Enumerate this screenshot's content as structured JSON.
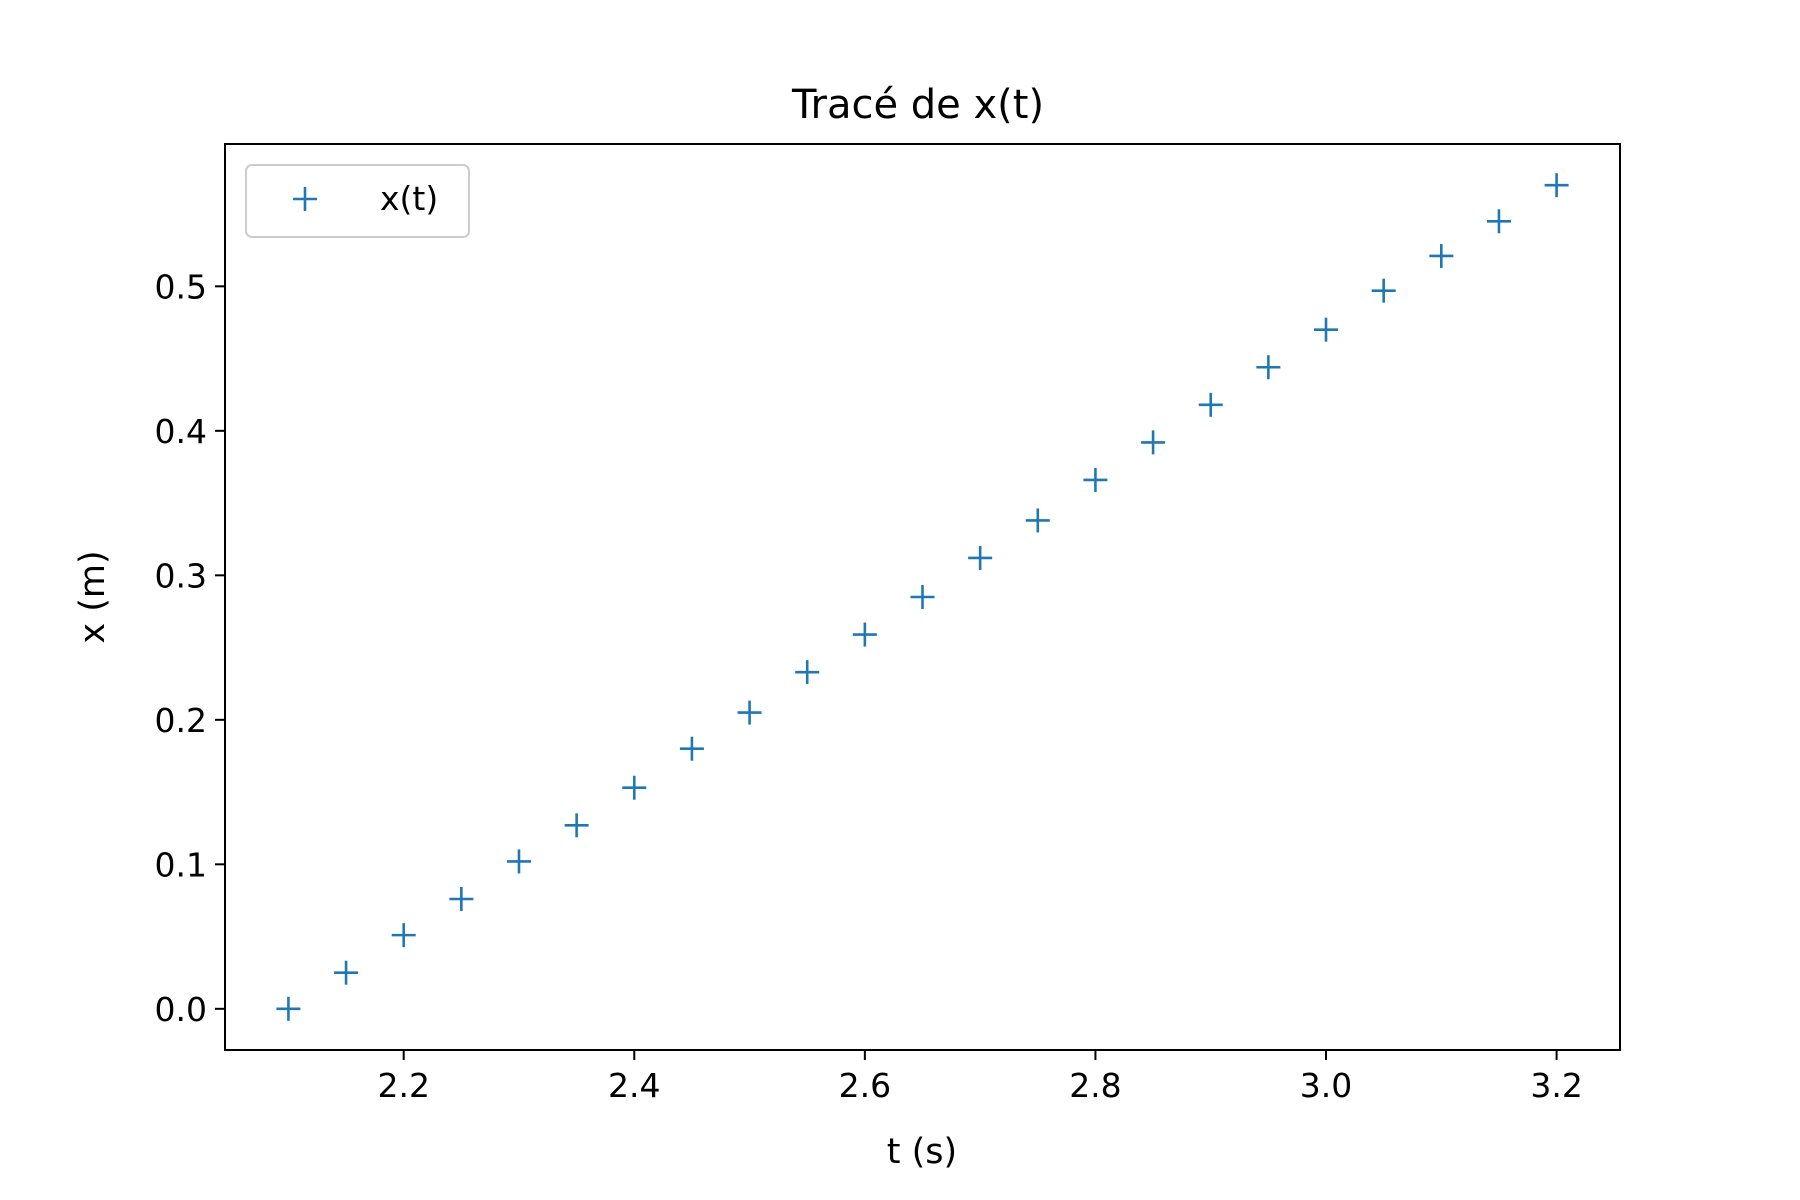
{
  "chart_data": {
    "type": "scatter",
    "title": "Tracé de x(t)",
    "xlabel": "t (s)",
    "ylabel": "x (m)",
    "xlim": [
      2.045,
      3.255
    ],
    "ylim": [
      -0.0285,
      0.5985
    ],
    "xticks": [
      2.2,
      2.4,
      2.6,
      2.8,
      3.0,
      3.2
    ],
    "xtick_labels": [
      "2.2",
      "2.4",
      "2.6",
      "2.8",
      "3.0",
      "3.2"
    ],
    "yticks": [
      0.0,
      0.1,
      0.2,
      0.3,
      0.4,
      0.5
    ],
    "ytick_labels": [
      "0.0",
      "0.1",
      "0.2",
      "0.3",
      "0.4",
      "0.5"
    ],
    "grid": false,
    "legend_position": "top-left",
    "marker": "+",
    "series": [
      {
        "name": "x(t)",
        "color": "#1f77b4",
        "x": [
          2.1,
          2.15,
          2.2,
          2.25,
          2.3,
          2.35,
          2.4,
          2.45,
          2.5,
          2.55,
          2.6,
          2.65,
          2.7,
          2.75,
          2.8,
          2.85,
          2.9,
          2.95,
          3.0,
          3.05,
          3.1,
          3.15,
          3.2
        ],
        "y": [
          0.0,
          0.025,
          0.051,
          0.076,
          0.102,
          0.127,
          0.153,
          0.18,
          0.205,
          0.233,
          0.259,
          0.285,
          0.312,
          0.338,
          0.366,
          0.392,
          0.418,
          0.444,
          0.47,
          0.497,
          0.521,
          0.545,
          0.57
        ]
      }
    ]
  }
}
